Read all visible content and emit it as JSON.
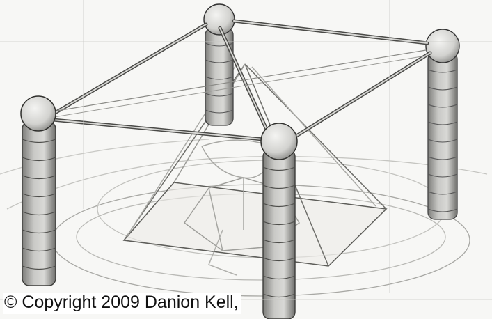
{
  "caption": {
    "text": "© Copyright 2009 Danion Kell,"
  }
}
